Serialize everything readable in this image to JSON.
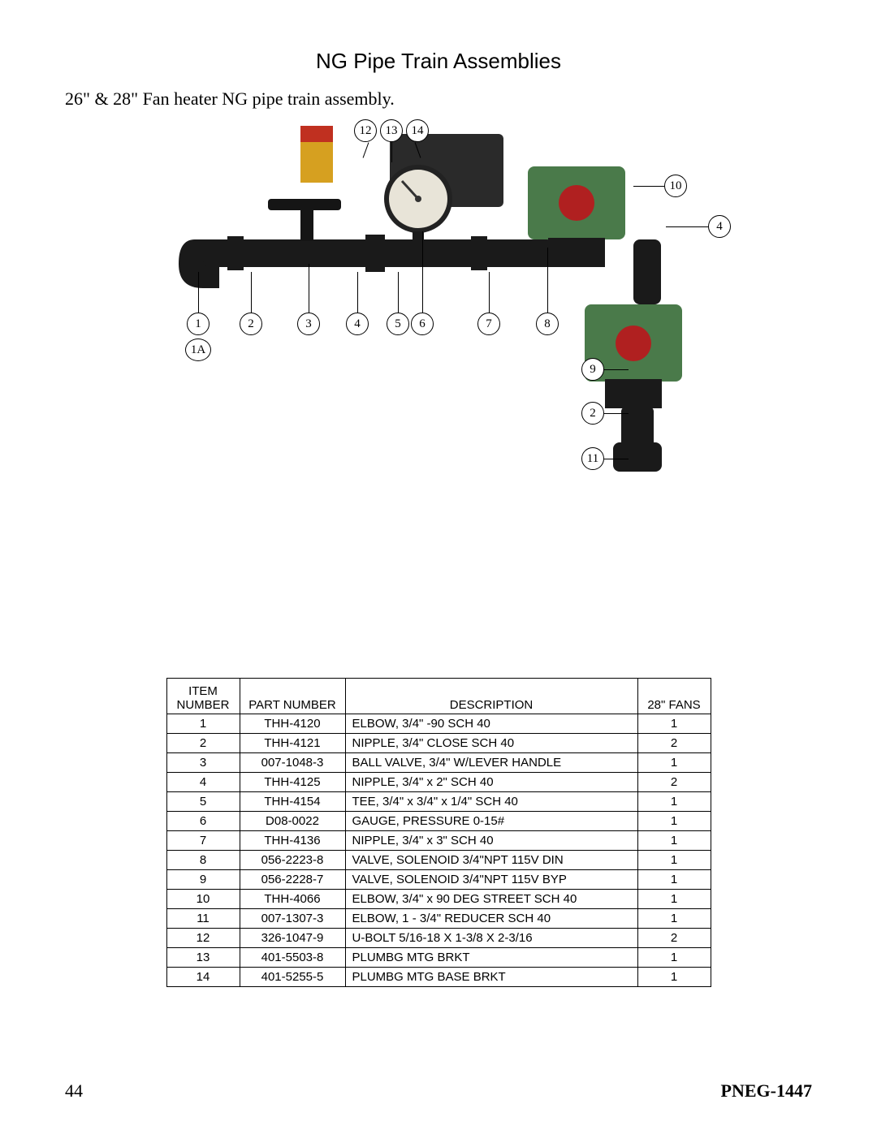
{
  "header": {
    "section_title": "NG Pipe Train Assemblies",
    "subtitle": "26\" & 28\"  Fan heater NG pipe train assembly."
  },
  "diagram": {
    "callouts": [
      "1",
      "1A",
      "2",
      "3",
      "4",
      "5",
      "6",
      "7",
      "8",
      "9",
      "10",
      "11",
      "12",
      "13",
      "14"
    ],
    "photo": {
      "pipe_color": "#1a1a1a",
      "solenoid_color": "#4a7a4a",
      "solenoid_cap": "#b02020",
      "gauge_face": "#e8e4d8",
      "gauge_rim": "#222222",
      "bracket_color": "#2a2a2a",
      "label_color": "#d6a020"
    }
  },
  "table": {
    "headers": {
      "item": "ITEM\nNUMBER",
      "part": "PART NUMBER",
      "desc": "DESCRIPTION",
      "qty": "28\" FANS"
    },
    "rows": [
      {
        "item": "1",
        "part": "THH-4120",
        "desc": "ELBOW, 3/4\" -90 SCH 40",
        "qty": "1"
      },
      {
        "item": "2",
        "part": "THH-4121",
        "desc": "NIPPLE, 3/4\" CLOSE SCH 40",
        "qty": "2"
      },
      {
        "item": "3",
        "part": "007-1048-3",
        "desc": "BALL VALVE, 3/4\" W/LEVER HANDLE",
        "qty": "1"
      },
      {
        "item": "4",
        "part": "THH-4125",
        "desc": "NIPPLE, 3/4\" x 2\" SCH 40",
        "qty": "2"
      },
      {
        "item": "5",
        "part": "THH-4154",
        "desc": "TEE, 3/4\" x 3/4\" x 1/4\" SCH 40",
        "qty": "1"
      },
      {
        "item": "6",
        "part": "D08-0022",
        "desc": "GAUGE, PRESSURE 0-15#",
        "qty": "1"
      },
      {
        "item": "7",
        "part": "THH-4136",
        "desc": "NIPPLE, 3/4\" x 3\" SCH 40",
        "qty": "1"
      },
      {
        "item": "8",
        "part": "056-2223-8",
        "desc": "VALVE, SOLENOID 3/4\"NPT 115V DIN",
        "qty": "1"
      },
      {
        "item": "9",
        "part": "056-2228-7",
        "desc": "VALVE, SOLENOID 3/4\"NPT 115V BYP",
        "qty": "1"
      },
      {
        "item": "10",
        "part": "THH-4066",
        "desc": "ELBOW, 3/4\" x 90 DEG STREET SCH 40",
        "qty": "1"
      },
      {
        "item": "11",
        "part": "007-1307-3",
        "desc": "ELBOW, 1 - 3/4\" REDUCER SCH 40",
        "qty": "1"
      },
      {
        "item": "12",
        "part": "326-1047-9",
        "desc": "U-BOLT 5/16-18 X 1-3/8 X 2-3/16",
        "qty": "2"
      },
      {
        "item": "13",
        "part": "401-5503-8",
        "desc": "PLUMBG MTG BRKT",
        "qty": "1"
      },
      {
        "item": "14",
        "part": "401-5255-5",
        "desc": "PLUMBG MTG BASE BRKT",
        "qty": "1"
      }
    ]
  },
  "footer": {
    "page_number": "44",
    "doc_id": "PNEG-1447"
  }
}
